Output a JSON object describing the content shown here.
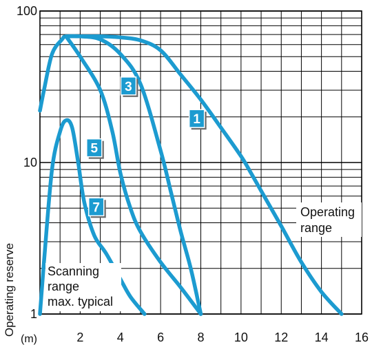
{
  "chart_data": {
    "type": "line",
    "y_scale": "log",
    "ylim": [
      1,
      100
    ],
    "xlim": [
      0,
      16
    ],
    "grid": true,
    "ylabel": "Operating reserve",
    "x_unit_label": "(m)",
    "x_ticks": [
      2,
      4,
      6,
      8,
      10,
      12,
      14,
      16
    ],
    "y_ticks": [
      1,
      10,
      100
    ],
    "annotations": {
      "operating_range": "Operating range",
      "scanning_range": "Scanning range max. typical"
    },
    "series": [
      {
        "name": "1",
        "x": [
          0,
          0.2,
          0.6,
          1.1,
          1.3,
          2,
          3,
          4,
          5,
          6,
          7,
          8,
          9,
          10,
          10.5,
          11,
          12,
          13,
          14,
          15
        ],
        "y": [
          22,
          30,
          52,
          65,
          68,
          68,
          68,
          67,
          64,
          55,
          38,
          26,
          17,
          11,
          8.5,
          6.5,
          3.8,
          2.2,
          1.4,
          1
        ]
      },
      {
        "name": "3",
        "x": [
          1.3,
          2,
          3,
          4,
          5,
          6,
          6.5,
          7,
          7.5,
          8
        ],
        "y": [
          68,
          68,
          65,
          52,
          33,
          12,
          6.5,
          3.5,
          2,
          1
        ]
      },
      {
        "name": "5",
        "x": [
          1.3,
          2,
          3,
          3.6,
          4,
          4.5,
          5,
          6,
          7,
          8
        ],
        "y": [
          68,
          50,
          30,
          16,
          8.5,
          5,
          3.5,
          2.2,
          1.5,
          1
        ]
      },
      {
        "name": "7",
        "x": [
          0,
          0.2,
          0.6,
          1,
          1.3,
          1.6,
          1.9,
          2.2,
          2.7,
          3.3,
          4,
          4.5,
          5.2
        ],
        "y": [
          1,
          2.2,
          9,
          16,
          19,
          17,
          10,
          5.5,
          3.3,
          2.5,
          1.7,
          1.3,
          1
        ]
      }
    ],
    "colors": {
      "curve": "#1c9bd0",
      "badge": "#1c9bd0",
      "badge_shadow": "#6b6b6b",
      "grid": "#000000"
    }
  }
}
